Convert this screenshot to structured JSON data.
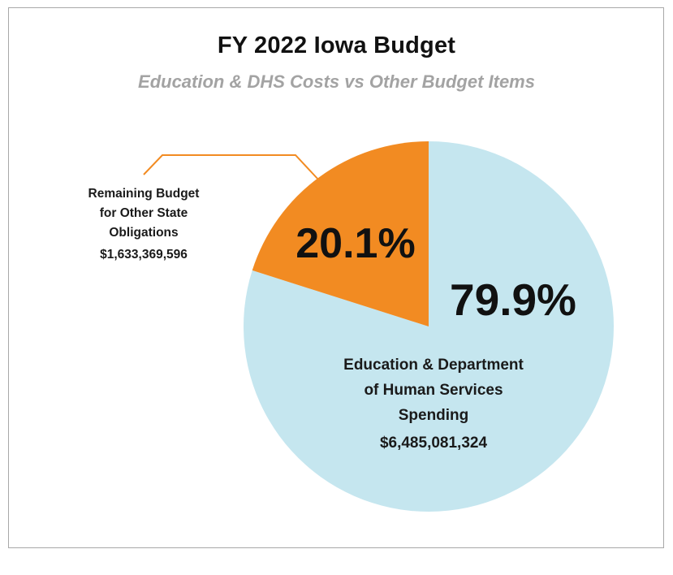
{
  "chart_data": {
    "type": "pie",
    "title": "FY 2022 Iowa Budget",
    "subtitle": "Education & DHS Costs vs Other Budget Items",
    "slices": [
      {
        "pct_label": "79.9%",
        "percent": 79.9,
        "amount": "$6,485,081,324",
        "label_lines": [
          "Education & Department",
          "of Human Services",
          "Spending"
        ],
        "color": "#c5e6ef"
      },
      {
        "pct_label": "20.1%",
        "percent": 20.1,
        "amount": "$1,633,369,596",
        "label_lines": [
          "Remaining Budget",
          "for Other State",
          "Obligations"
        ],
        "color": "#f28b22"
      }
    ],
    "leader_line_color": "#f28b22"
  }
}
